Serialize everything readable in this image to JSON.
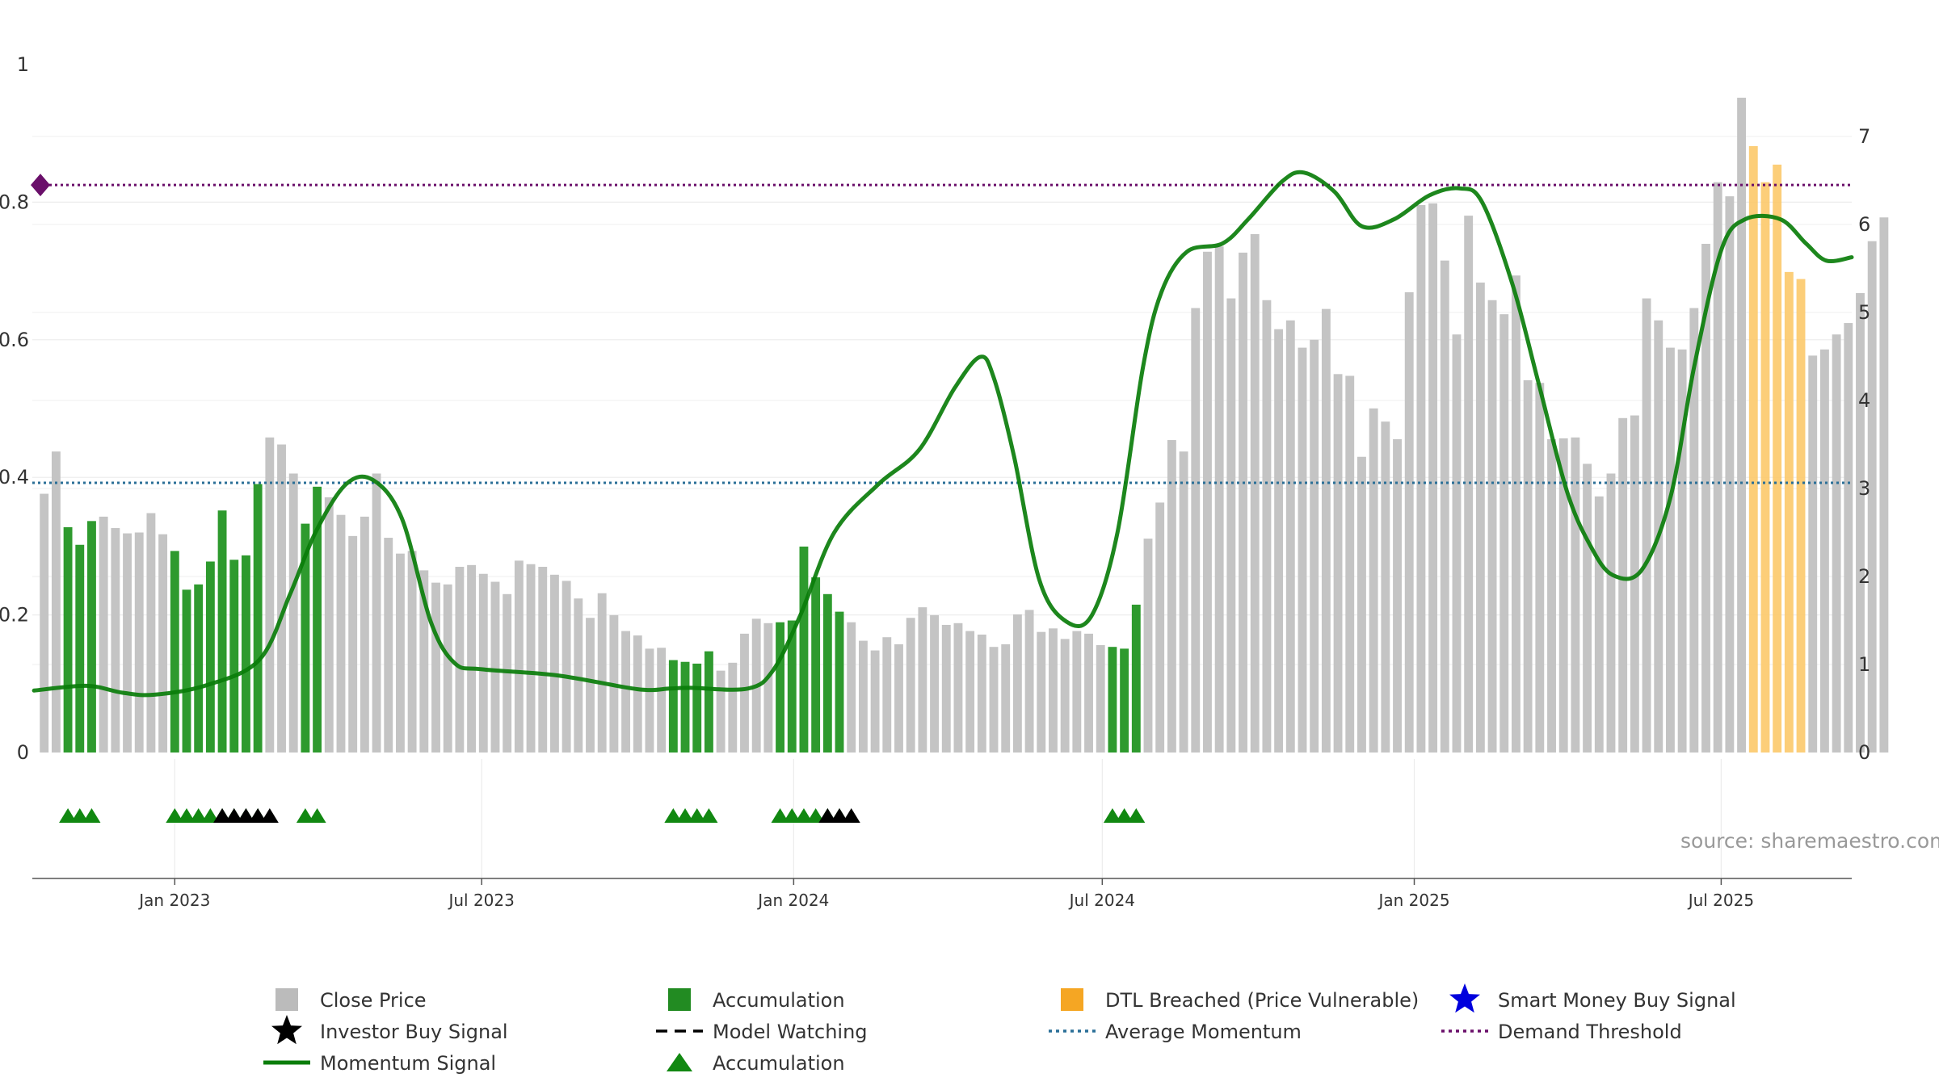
{
  "chart_data": {
    "type": "bar",
    "source": "source: sharemaestro.com",
    "left_axis": {
      "ylim": [
        0,
        1
      ],
      "ticks": [
        "0",
        "0.2",
        "0.4",
        "0.6",
        "0.8",
        "1"
      ],
      "tick_values": [
        0,
        0.2,
        0.4,
        0.6,
        0.8,
        1.0
      ]
    },
    "right_axis": {
      "ylim": [
        0,
        7.84
      ],
      "ticks": [
        "0",
        "1",
        "2",
        "3",
        "4",
        "5",
        "6",
        "7"
      ],
      "tick_values": [
        0,
        1,
        2,
        3,
        4,
        5,
        6,
        7
      ]
    },
    "x_axis": {
      "start": "2022-10-09",
      "end": "2025-09-16",
      "ticks": [
        {
          "date": "2023-01-01",
          "label": "Jan 2023"
        },
        {
          "date": "2023-07-01",
          "label": "Jul 2023"
        },
        {
          "date": "2024-01-01",
          "label": "Jan 2024"
        },
        {
          "date": "2024-07-01",
          "label": "Jul 2024"
        },
        {
          "date": "2025-01-01",
          "label": "Jan 2025"
        },
        {
          "date": "2025-07-01",
          "label": "Jul 2025"
        }
      ]
    },
    "bars": {
      "start_date": "2022-10-16",
      "interval_days": 7,
      "values": [
        2.94,
        3.42,
        2.56,
        2.36,
        2.63,
        2.68,
        2.55,
        2.49,
        2.5,
        2.72,
        2.48,
        2.29,
        1.85,
        1.91,
        2.17,
        2.75,
        2.19,
        2.24,
        3.05,
        3.58,
        3.5,
        3.17,
        2.6,
        3.02,
        2.9,
        2.7,
        2.46,
        2.68,
        3.17,
        2.44,
        2.26,
        2.29,
        2.07,
        1.93,
        1.91,
        2.11,
        2.13,
        2.03,
        1.94,
        1.8,
        2.18,
        2.14,
        2.11,
        2.02,
        1.95,
        1.75,
        1.53,
        1.81,
        1.56,
        1.38,
        1.33,
        1.18,
        1.19,
        1.05,
        1.03,
        1.01,
        1.15,
        0.93,
        1.02,
        1.35,
        1.52,
        1.47,
        1.48,
        1.5,
        2.34,
        1.99,
        1.8,
        1.6,
        1.48,
        1.27,
        1.16,
        1.31,
        1.23,
        1.53,
        1.65,
        1.56,
        1.45,
        1.47,
        1.38,
        1.34,
        1.2,
        1.23,
        1.57,
        1.62,
        1.37,
        1.41,
        1.29,
        1.38,
        1.35,
        1.22,
        1.2,
        1.18,
        1.68,
        2.43,
        2.84,
        3.55,
        3.42,
        5.05,
        5.69,
        5.75,
        5.16,
        5.68,
        5.89,
        5.14,
        4.81,
        4.91,
        4.6,
        4.69,
        5.04,
        4.3,
        4.28,
        3.36,
        3.91,
        3.76,
        3.56,
        5.23,
        6.22,
        6.24,
        5.59,
        4.75,
        6.1,
        5.34,
        5.14,
        4.98,
        5.42,
        4.23,
        4.2,
        3.56,
        3.57,
        3.58,
        3.28,
        2.91,
        3.17,
        3.8,
        3.83,
        5.16,
        4.91,
        4.6,
        4.58,
        5.05,
        5.78,
        6.48,
        6.32,
        7.44,
        6.89,
        6.48,
        6.68,
        5.46,
        5.38,
        4.51,
        4.58,
        4.75,
        4.88,
        5.22,
        5.81,
        6.08
      ],
      "accumulation": [
        2,
        3,
        4,
        11,
        12,
        13,
        14,
        15,
        16,
        17,
        18,
        22,
        23,
        53,
        54,
        55,
        56,
        62,
        63,
        64,
        65,
        66,
        67,
        90,
        91,
        92
      ],
      "dtl_breached": [
        144,
        145,
        146,
        147,
        148
      ]
    },
    "momentum": {
      "unit": "left",
      "points": [
        [
          "2022-10-10",
          0.09
        ],
        [
          "2022-11-10",
          0.097
        ],
        [
          "2022-12-01",
          0.087
        ],
        [
          "2022-12-20",
          0.084
        ],
        [
          "2023-01-20",
          0.098
        ],
        [
          "2023-02-20",
          0.135
        ],
        [
          "2023-03-10",
          0.23
        ],
        [
          "2023-03-25",
          0.32
        ],
        [
          "2023-04-12",
          0.39
        ],
        [
          "2023-04-28",
          0.396
        ],
        [
          "2023-05-15",
          0.34
        ],
        [
          "2023-06-01",
          0.19
        ],
        [
          "2023-06-15",
          0.13
        ],
        [
          "2023-07-01",
          0.121
        ],
        [
          "2023-08-15",
          0.112
        ],
        [
          "2023-10-01",
          0.092
        ],
        [
          "2023-10-20",
          0.093
        ],
        [
          "2023-11-01",
          0.094
        ],
        [
          "2023-12-05",
          0.093
        ],
        [
          "2023-12-20",
          0.12
        ],
        [
          "2024-01-05",
          0.2
        ],
        [
          "2024-01-25",
          0.32
        ],
        [
          "2024-02-20",
          0.39
        ],
        [
          "2024-03-15",
          0.44
        ],
        [
          "2024-04-05",
          0.53
        ],
        [
          "2024-04-20",
          0.575
        ],
        [
          "2024-04-28",
          0.545
        ],
        [
          "2024-05-10",
          0.43
        ],
        [
          "2024-05-25",
          0.25
        ],
        [
          "2024-06-10",
          0.19
        ],
        [
          "2024-06-25",
          0.2
        ],
        [
          "2024-07-10",
          0.32
        ],
        [
          "2024-07-25",
          0.56
        ],
        [
          "2024-08-05",
          0.67
        ],
        [
          "2024-08-20",
          0.728
        ],
        [
          "2024-09-10",
          0.74
        ],
        [
          "2024-09-25",
          0.775
        ],
        [
          "2024-10-15",
          0.83
        ],
        [
          "2024-10-28",
          0.843
        ],
        [
          "2024-11-15",
          0.815
        ],
        [
          "2024-12-01",
          0.765
        ],
        [
          "2024-12-20",
          0.775
        ],
        [
          "2025-01-10",
          0.81
        ],
        [
          "2025-01-28",
          0.82
        ],
        [
          "2025-02-10",
          0.8
        ],
        [
          "2025-02-28",
          0.68
        ],
        [
          "2025-03-15",
          0.54
        ],
        [
          "2025-04-01",
          0.38
        ],
        [
          "2025-04-15",
          0.3
        ],
        [
          "2025-04-28",
          0.258
        ],
        [
          "2025-05-15",
          0.265
        ],
        [
          "2025-06-01",
          0.37
        ],
        [
          "2025-06-15",
          0.56
        ],
        [
          "2025-07-01",
          0.73
        ],
        [
          "2025-07-15",
          0.775
        ],
        [
          "2025-08-05",
          0.775
        ],
        [
          "2025-08-20",
          0.74
        ],
        [
          "2025-09-01",
          0.715
        ],
        [
          "2025-09-16",
          0.72
        ]
      ]
    },
    "average_momentum": {
      "unit": "left",
      "value": 0.392
    },
    "demand_threshold": {
      "unit": "left",
      "value": 0.825
    },
    "signals": {
      "accumulation_markers": [
        2,
        3,
        4,
        11,
        12,
        13,
        14,
        15,
        16,
        17,
        18,
        22,
        23,
        53,
        54,
        55,
        56,
        62,
        63,
        64,
        65,
        66,
        67,
        90,
        91,
        92
      ],
      "investor_buy_markers": [
        15,
        16,
        17,
        18,
        19,
        66,
        67,
        68
      ]
    },
    "legend": [
      {
        "label": "Close Price",
        "marker": "square",
        "color": "#bbbbbb"
      },
      {
        "label": "Accumulation",
        "marker": "square",
        "color": "#228b22"
      },
      {
        "label": "DTL Breached (Price Vulnerable)",
        "marker": "square",
        "color": "#f5a623"
      },
      {
        "label": "Smart Money Buy Signal",
        "marker": "star",
        "color": "#0000dd"
      },
      {
        "label": "Investor Buy Signal",
        "marker": "star",
        "color": "#000000"
      },
      {
        "label": "Model Watching",
        "marker": "dash",
        "color": "#000000"
      },
      {
        "label": "Average Momentum",
        "marker": "dotted",
        "color": "#2a6f97"
      },
      {
        "label": "Demand Threshold",
        "marker": "dotted",
        "color": "#6a0f6a"
      },
      {
        "label": "Momentum Signal",
        "marker": "line",
        "color": "#0a7d0a"
      },
      {
        "label": "Accumulation",
        "marker": "triangle",
        "color": "#118811"
      }
    ]
  }
}
